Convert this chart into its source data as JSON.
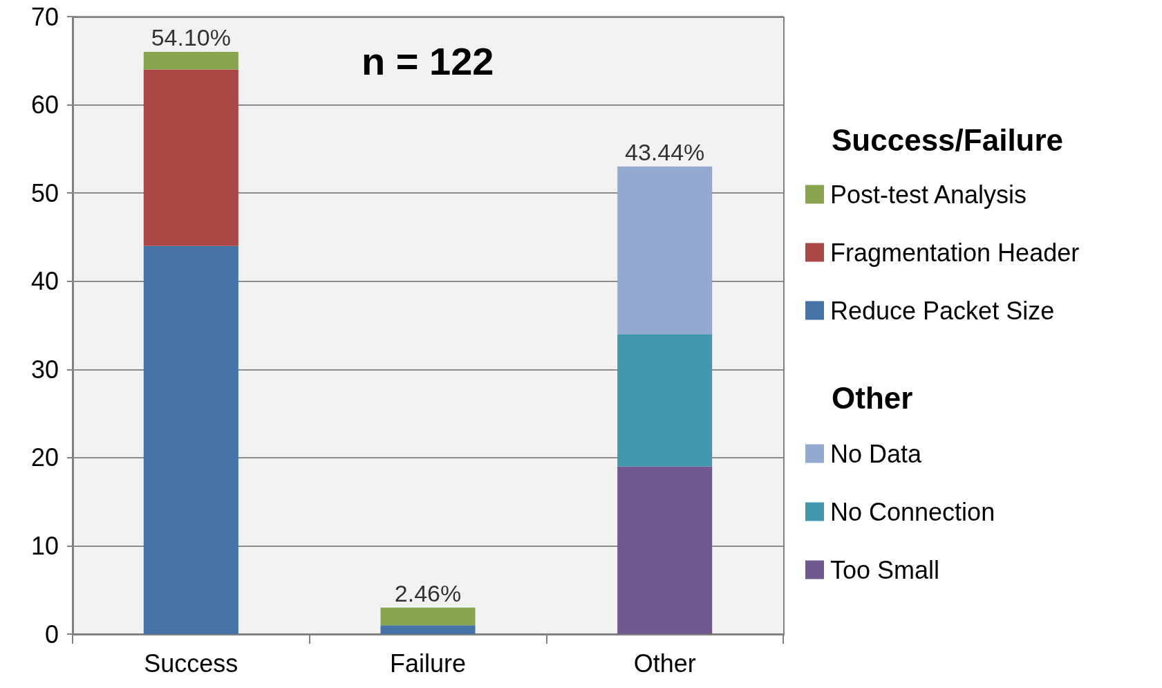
{
  "chart_data": {
    "type": "bar",
    "stacked": true,
    "categories": [
      "Success",
      "Failure",
      "Other"
    ],
    "series": [
      {
        "name": "Reduce Packet Size",
        "color": "#4572a7",
        "values": [
          44,
          1,
          null
        ]
      },
      {
        "name": "Fragmentation Header",
        "color": "#aa4643",
        "values": [
          20,
          null,
          null
        ]
      },
      {
        "name": "Post-test Analysis",
        "color": "#89a54e",
        "values": [
          2,
          2,
          null
        ]
      },
      {
        "name": "Too Small",
        "color": "#71588f",
        "values": [
          null,
          null,
          19
        ]
      },
      {
        "name": "No Connection",
        "color": "#4198af",
        "values": [
          null,
          null,
          15
        ]
      },
      {
        "name": "No Data",
        "color": "#93a9cf",
        "values": [
          null,
          null,
          19
        ]
      }
    ],
    "ylim": [
      0,
      70
    ],
    "yticks": [
      0,
      10,
      20,
      30,
      40,
      50,
      60,
      70
    ],
    "grid": "y",
    "legend": "right",
    "legend_title": "Success/Failure",
    "annotations": [
      "n = 122",
      "Other",
      {
        "text": "54.10%",
        "x": "Success",
        "y": 66
      },
      {
        "text": "2.46%",
        "x": "Failure",
        "y": 3
      },
      {
        "text": "43.44%",
        "x": "Other",
        "y": 53
      }
    ]
  }
}
